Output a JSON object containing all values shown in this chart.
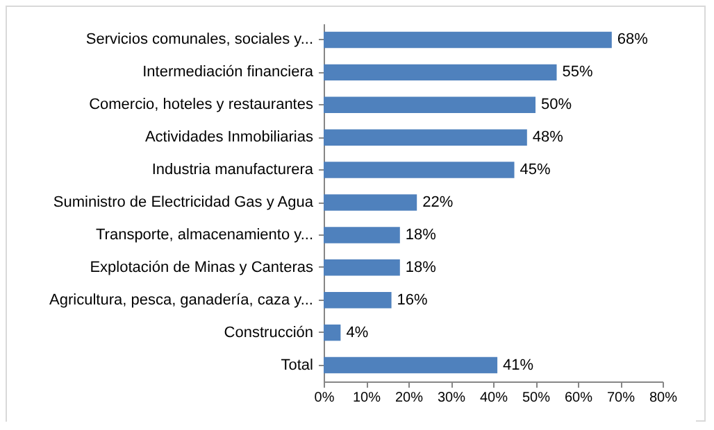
{
  "chart_data": {
    "type": "bar",
    "orientation": "horizontal",
    "categories": [
      "Servicios comunales, sociales y...",
      "Intermediación financiera",
      "Comercio, hoteles y restaurantes",
      "Actividades Inmobiliarias",
      "Industria manufacturera",
      "Suministro de Electricidad Gas y Agua",
      "Transporte, almacenamiento y...",
      "Explotación de Minas y Canteras",
      "Agricultura, pesca, ganadería, caza y...",
      "Construcción",
      "Total"
    ],
    "values": [
      68,
      55,
      50,
      48,
      45,
      22,
      18,
      18,
      16,
      4,
      41
    ],
    "value_labels": [
      "68%",
      "55%",
      "50%",
      "48%",
      "45%",
      "22%",
      "18%",
      "18%",
      "16%",
      "4%",
      "41%"
    ],
    "color": "#4f81bd",
    "xlim": [
      0,
      80
    ],
    "xticks": [
      {
        "value": 0,
        "label": "0%"
      },
      {
        "value": 10,
        "label": "10%"
      },
      {
        "value": 20,
        "label": "20%"
      },
      {
        "value": 30,
        "label": "30%"
      },
      {
        "value": 40,
        "label": "40%"
      },
      {
        "value": 50,
        "label": "50%"
      },
      {
        "value": 60,
        "label": "60%"
      },
      {
        "value": 70,
        "label": "70%"
      },
      {
        "value": 80,
        "label": "80%"
      }
    ],
    "grid": false
  }
}
